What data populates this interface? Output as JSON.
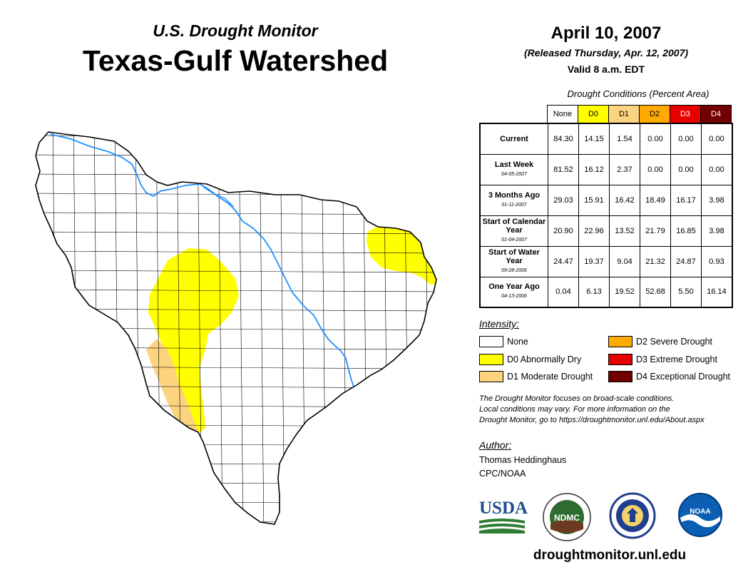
{
  "header": {
    "title_top": "U.S. Drought Monitor",
    "title_main": "Texas-Gulf Watershed",
    "date": "April 10, 2007",
    "released": "(Released Thursday, Apr. 12, 2007)",
    "valid": "Valid 8 a.m. EDT"
  },
  "table": {
    "title": "Drought Conditions (Percent Area)",
    "columns": [
      {
        "label": "None",
        "color": "#ffffff",
        "text_color": "#000000"
      },
      {
        "label": "D0",
        "color": "#ffff00",
        "text_color": "#000000"
      },
      {
        "label": "D1",
        "color": "#fcd37f",
        "text_color": "#000000"
      },
      {
        "label": "D2",
        "color": "#ffaa00",
        "text_color": "#000000"
      },
      {
        "label": "D3",
        "color": "#e60000",
        "text_color": "#ffffff"
      },
      {
        "label": "D4",
        "color": "#730000",
        "text_color": "#ffffff"
      }
    ],
    "rows": [
      {
        "label": "Current",
        "date": "",
        "values": [
          "84.30",
          "14.15",
          "1.54",
          "0.00",
          "0.00",
          "0.00"
        ]
      },
      {
        "label": "Last Week",
        "date": "04-05-2007",
        "values": [
          "81.52",
          "16.12",
          "2.37",
          "0.00",
          "0.00",
          "0.00"
        ]
      },
      {
        "label": "3 Months Ago",
        "date": "01-11-2007",
        "values": [
          "29.03",
          "15.91",
          "16.42",
          "18.49",
          "16.17",
          "3.98"
        ]
      },
      {
        "label": "Start of Calendar Year",
        "date": "01-04-2007",
        "values": [
          "20.90",
          "22.96",
          "13.52",
          "21.79",
          "16.85",
          "3.98"
        ]
      },
      {
        "label": "Start of Water Year",
        "date": "09-28-2006",
        "values": [
          "24.47",
          "19.37",
          "9.04",
          "21.32",
          "24.87",
          "0.93"
        ]
      },
      {
        "label": "One Year Ago",
        "date": "04-13-2006",
        "values": [
          "0.04",
          "6.13",
          "19.52",
          "52.68",
          "5.50",
          "16.14"
        ]
      }
    ]
  },
  "legend": {
    "title": "Intensity:",
    "items": [
      {
        "label": "None",
        "color": "#ffffff"
      },
      {
        "label": "D0 Abnormally Dry",
        "color": "#ffff00"
      },
      {
        "label": "D1 Moderate Drought",
        "color": "#fcd37f"
      },
      {
        "label": "D2 Severe Drought",
        "color": "#ffaa00"
      },
      {
        "label": "D3 Extreme Drought",
        "color": "#e60000"
      },
      {
        "label": "D4 Exceptional Drought",
        "color": "#730000"
      }
    ]
  },
  "note": {
    "line1": "The Drought Monitor focuses on broad-scale conditions.",
    "line2": "Local conditions may vary. For more information on the",
    "line3": "Drought Monitor, go to https://droughtmonitor.unl.edu/About.aspx"
  },
  "author": {
    "title": "Author:",
    "name": "Thomas Heddinghaus",
    "org": "CPC/NOAA"
  },
  "logos": {
    "usda": "USDA",
    "ndmc": "NDMC",
    "noaa": "NOAA",
    "doc_icon": "commerce-seal-icon"
  },
  "footer_url": "droughtmonitor.unl.edu",
  "map": {
    "river_color": "#1e90ff",
    "county_line_color": "#000000"
  }
}
